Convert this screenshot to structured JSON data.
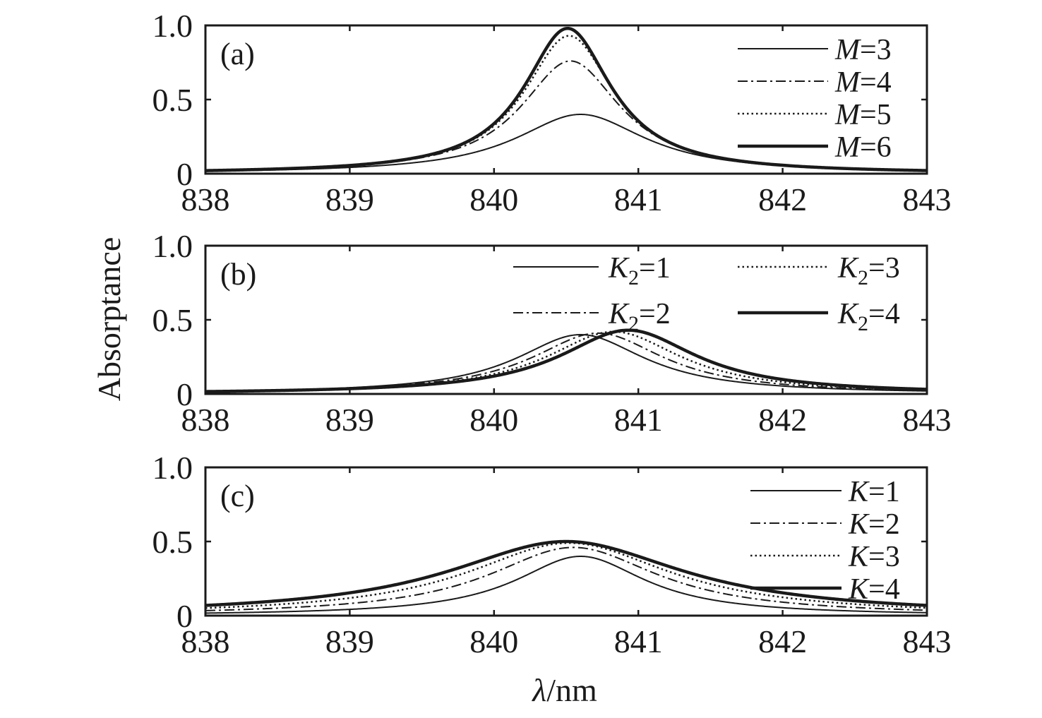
{
  "chart_data": [
    {
      "type": "line",
      "panel_label": "(a)",
      "xlim": [
        838,
        843
      ],
      "ylim": [
        0,
        1.0
      ],
      "xticks": [
        "838",
        "839",
        "840",
        "841",
        "842",
        "843"
      ],
      "yticks": [
        "0",
        "0.5",
        "1.0"
      ],
      "legend": {
        "position": "top-right",
        "columns": 1
      },
      "series": [
        {
          "name": "M=3",
          "var": "M",
          "sub": "",
          "value": "3",
          "style": "solid",
          "peak": 0.4,
          "center": 840.6,
          "width": 0.55
        },
        {
          "name": "M=4",
          "var": "M",
          "sub": "",
          "value": "4",
          "style": "dashdot",
          "peak": 0.76,
          "center": 840.53,
          "width": 0.42
        },
        {
          "name": "M=5",
          "var": "M",
          "sub": "",
          "value": "5",
          "style": "dotted",
          "peak": 0.93,
          "center": 840.52,
          "width": 0.38
        },
        {
          "name": "M=6",
          "var": "M",
          "sub": "",
          "value": "6",
          "style": "bold",
          "peak": 0.98,
          "center": 840.51,
          "width": 0.37
        }
      ]
    },
    {
      "type": "line",
      "panel_label": "(b)",
      "xlim": [
        838,
        843
      ],
      "ylim": [
        0,
        1.0
      ],
      "xticks": [
        "838",
        "839",
        "840",
        "841",
        "842",
        "843"
      ],
      "yticks": [
        "0",
        "0.5",
        "1.0"
      ],
      "legend": {
        "position": "top-right",
        "columns": 2
      },
      "series": [
        {
          "name": "K2=1",
          "var": "K",
          "sub": "2",
          "value": "1",
          "style": "solid",
          "peak": 0.4,
          "center": 840.6,
          "width": 0.55
        },
        {
          "name": "K2=2",
          "var": "K",
          "sub": "2",
          "value": "2",
          "style": "dashdot",
          "peak": 0.41,
          "center": 840.72,
          "width": 0.56
        },
        {
          "name": "K2=3",
          "var": "K",
          "sub": "2",
          "value": "3",
          "style": "dotted",
          "peak": 0.42,
          "center": 840.83,
          "width": 0.57
        },
        {
          "name": "K2=4",
          "var": "K",
          "sub": "2",
          "value": "4",
          "style": "bold",
          "peak": 0.43,
          "center": 840.93,
          "width": 0.58
        }
      ]
    },
    {
      "type": "line",
      "panel_label": "(c)",
      "xlim": [
        838,
        843
      ],
      "ylim": [
        0,
        1.0
      ],
      "xticks": [
        "838",
        "839",
        "840",
        "841",
        "842",
        "843"
      ],
      "yticks": [
        "0",
        "0.5",
        "1.0"
      ],
      "legend": {
        "position": "top-right",
        "columns": 1
      },
      "series": [
        {
          "name": "K=1",
          "var": "K",
          "sub": "",
          "value": "1",
          "style": "solid",
          "peak": 0.4,
          "center": 840.6,
          "width": 0.55
        },
        {
          "name": "K=2",
          "var": "K",
          "sub": "",
          "value": "2",
          "style": "dashdot",
          "peak": 0.46,
          "center": 840.55,
          "width": 0.72
        },
        {
          "name": "K=3",
          "var": "K",
          "sub": "",
          "value": "3",
          "style": "dotted",
          "peak": 0.49,
          "center": 840.52,
          "width": 0.86
        },
        {
          "name": "K=4",
          "var": "K",
          "sub": "",
          "value": "4",
          "style": "bold",
          "peak": 0.5,
          "center": 840.5,
          "width": 1.0
        }
      ]
    }
  ],
  "ylabel": "Absorptance",
  "xlabel": {
    "symbol": "λ",
    "unit": "/nm"
  }
}
